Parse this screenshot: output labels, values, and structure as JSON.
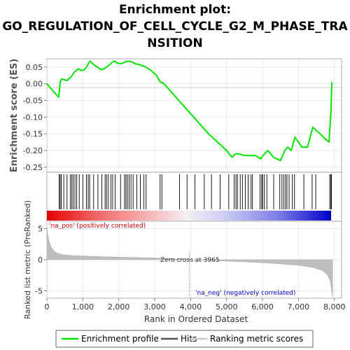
{
  "chart_data": {
    "type": "line",
    "title_lines": [
      "Enrichment plot:",
      "GO_REGULATION_OF_CELL_CYCLE_G2_M_PHASE_TRA",
      "NSITION"
    ],
    "xlabel": "Rank in Ordered Dataset",
    "ylabel_top": "Enrichment score (ES)",
    "ylabel_bottom": "Ranked list metric (PreRanked)",
    "xlim": [
      0,
      8200
    ],
    "x_ticks": [
      0,
      1000,
      2000,
      3000,
      4000,
      5000,
      6000,
      7000,
      8000
    ],
    "x_tick_labels": [
      "0",
      "1,000",
      "2,000",
      "3,000",
      "4,000",
      "5,000",
      "6,000",
      "7,000",
      "8,000"
    ],
    "es_ylim": [
      -0.265,
      0.075
    ],
    "es_ticks": [
      0.05,
      0.0,
      -0.05,
      -0.1,
      -0.15,
      -0.2,
      -0.25
    ],
    "es_tick_labels": [
      "0.05",
      "0.00",
      "-0.05",
      "-0.10",
      "-0.15",
      "-0.20",
      "-0.25"
    ],
    "metric_ylim": [
      -6.2,
      6.2
    ],
    "metric_ticks": [
      5,
      0,
      -5
    ],
    "metric_tick_labels": [
      "5",
      "0",
      "-5"
    ],
    "enrichment_profile": {
      "x": [
        0,
        200,
        330,
        370,
        410,
        480,
        560,
        640,
        700,
        760,
        820,
        880,
        960,
        1040,
        1100,
        1160,
        1200,
        1300,
        1400,
        1520,
        1620,
        1720,
        1820,
        1880,
        1960,
        2060,
        2160,
        2260,
        2360,
        2460,
        2560,
        2660,
        2760,
        2900,
        3050,
        3160,
        3230,
        3300,
        4000,
        4500,
        5000,
        5150,
        5250,
        5350,
        5500,
        5650,
        5800,
        5950,
        6050,
        6150,
        6300,
        6500,
        6620,
        6700,
        6800,
        6900,
        7100,
        7250,
        7400,
        7850,
        7900,
        7930
      ],
      "y": [
        0.0,
        -0.025,
        -0.04,
        0.005,
        0.015,
        0.012,
        0.01,
        0.018,
        0.025,
        0.035,
        0.04,
        0.045,
        0.04,
        0.042,
        0.05,
        0.062,
        0.068,
        0.058,
        0.05,
        0.042,
        0.047,
        0.055,
        0.065,
        0.068,
        0.062,
        0.06,
        0.065,
        0.068,
        0.066,
        0.06,
        0.058,
        0.054,
        0.05,
        0.04,
        0.025,
        0.005,
        0.003,
        -0.005,
        -0.09,
        -0.15,
        -0.2,
        -0.22,
        -0.21,
        -0.21,
        -0.215,
        -0.215,
        -0.215,
        -0.225,
        -0.21,
        -0.2,
        -0.22,
        -0.23,
        -0.2,
        -0.19,
        -0.2,
        -0.16,
        -0.19,
        -0.19,
        -0.13,
        -0.175,
        -0.09,
        0.005
      ]
    },
    "hits": [
      340,
      370,
      400,
      470,
      560,
      650,
      690,
      730,
      780,
      830,
      900,
      1000,
      1100,
      1150,
      1190,
      1300,
      1420,
      1530,
      1620,
      1660,
      1710,
      1780,
      1830,
      1900,
      2050,
      2160,
      2200,
      2240,
      2290,
      2340,
      2400,
      2500,
      2600,
      2700,
      2760,
      3150,
      3200,
      3690,
      3900,
      4120,
      4380,
      4580,
      4820,
      5060,
      5210,
      5260,
      5300,
      5380,
      5440,
      5520,
      5600,
      5680,
      5720,
      5930,
      5980,
      6000,
      6050,
      6120,
      6310,
      6480,
      6540,
      6590,
      6640,
      6680,
      6740,
      6830,
      6890,
      7150,
      7380,
      7480,
      7870,
      7900,
      7920
    ],
    "ranked_metric": {
      "x": [
        0,
        20,
        60,
        120,
        200,
        300,
        450,
        700,
        1000,
        1500,
        2000,
        2500,
        3000,
        3500,
        3965,
        4500,
        5000,
        5500,
        6000,
        6500,
        7000,
        7400,
        7650,
        7800,
        7880,
        7920,
        7950
      ],
      "y": [
        5.3,
        4.2,
        3.0,
        2.0,
        1.4,
        1.0,
        0.8,
        0.68,
        0.6,
        0.5,
        0.42,
        0.35,
        0.28,
        0.15,
        0.0,
        -0.1,
        -0.22,
        -0.35,
        -0.5,
        -0.68,
        -0.9,
        -1.25,
        -1.7,
        -2.4,
        -3.4,
        -4.8,
        -6.0
      ]
    },
    "zero_cross_x": 3965,
    "zero_cross_label": "Zero cross at 3965",
    "na_pos_label": "'na_pos' (positively correlated)",
    "na_neg_label": "'na_neg' (negatively correlated)",
    "legend": [
      "Enrichment profile",
      "Hits",
      "Ranking metric scores"
    ],
    "grid": true,
    "colors": {
      "profile": "#00e600",
      "hits": "#000000",
      "metric_fill": "#bebebe",
      "pos_text": "#cc0000",
      "neg_text": "#0000cc",
      "grid": "#dddddd",
      "zero_line": "#999999"
    }
  }
}
